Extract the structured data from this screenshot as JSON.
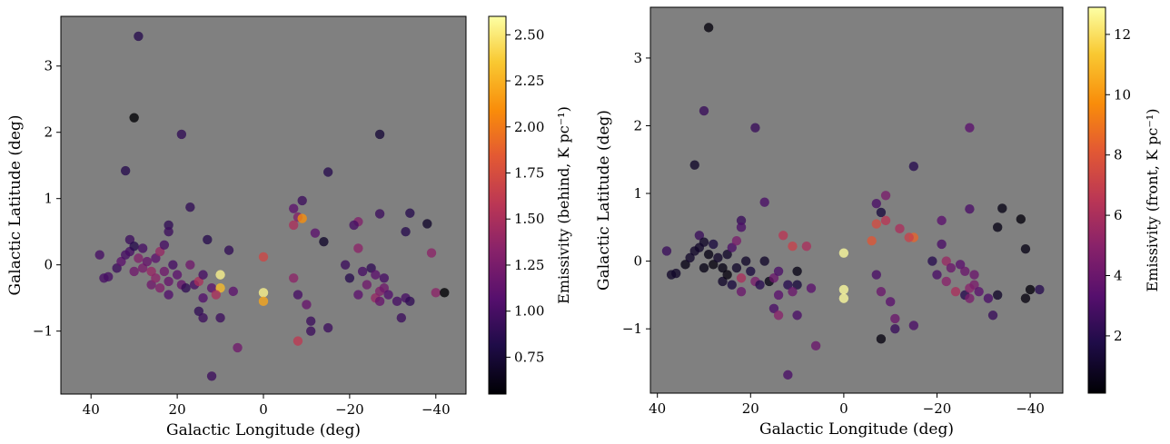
{
  "chart_data": [
    {
      "type": "scatter",
      "xlabel": "Galactic Longitude (deg)",
      "ylabel": "Galactic Latitude (deg)",
      "xlim": [
        47,
        -47
      ],
      "ylim": [
        -1.95,
        3.75
      ],
      "xticks": [
        40,
        20,
        0,
        -20,
        -40
      ],
      "xtick_labels": [
        "40",
        "20",
        "0",
        "−20",
        "−40"
      ],
      "yticks": [
        3,
        2,
        1,
        0,
        -1
      ],
      "ytick_labels": [
        "3",
        "2",
        "1",
        "0",
        "−1"
      ],
      "background": "#808080",
      "colormap": "inferno",
      "colorbar": {
        "label": "Emissivity (behind, K pc⁻¹)",
        "range": [
          0.55,
          2.6
        ],
        "ticks": [
          0.75,
          1.0,
          1.25,
          1.5,
          1.75,
          2.0,
          2.25,
          2.5
        ],
        "tick_labels": [
          "0.75",
          "1.00",
          "1.25",
          "1.50",
          "1.75",
          "2.00",
          "2.25",
          "2.50"
        ]
      },
      "points": [
        {
          "x": 29,
          "y": 3.45,
          "c": 0.85
        },
        {
          "x": 30,
          "y": 2.22,
          "c": 0.55
        },
        {
          "x": 19,
          "y": 1.97,
          "c": 0.9
        },
        {
          "x": -27,
          "y": 1.97,
          "c": 0.75
        },
        {
          "x": 32,
          "y": 1.42,
          "c": 0.85
        },
        {
          "x": -15,
          "y": 1.4,
          "c": 0.85
        },
        {
          "x": 17,
          "y": 0.87,
          "c": 0.9
        },
        {
          "x": -9,
          "y": 0.97,
          "c": 0.95
        },
        {
          "x": -7,
          "y": 0.85,
          "c": 1.1
        },
        {
          "x": -8,
          "y": 0.72,
          "c": 1.3
        },
        {
          "x": -9,
          "y": 0.7,
          "c": 2.1
        },
        {
          "x": -7,
          "y": 0.6,
          "c": 1.5
        },
        {
          "x": -12,
          "y": 0.48,
          "c": 1.1
        },
        {
          "x": -22,
          "y": 0.65,
          "c": 1.3
        },
        {
          "x": -21,
          "y": 0.6,
          "c": 1.0
        },
        {
          "x": -27,
          "y": 0.77,
          "c": 0.95
        },
        {
          "x": -34,
          "y": 0.78,
          "c": 0.85
        },
        {
          "x": -38,
          "y": 0.62,
          "c": 0.7
        },
        {
          "x": -33,
          "y": 0.5,
          "c": 0.85
        },
        {
          "x": 38,
          "y": 0.15,
          "c": 1.0
        },
        {
          "x": 37,
          "y": -0.2,
          "c": 1.0
        },
        {
          "x": 36,
          "y": -0.18,
          "c": 1.0
        },
        {
          "x": 34,
          "y": -0.05,
          "c": 0.95
        },
        {
          "x": 33,
          "y": 0.05,
          "c": 1.1
        },
        {
          "x": 32,
          "y": 0.15,
          "c": 1.0
        },
        {
          "x": 31,
          "y": 0.2,
          "c": 1.0
        },
        {
          "x": 31,
          "y": 0.38,
          "c": 0.95
        },
        {
          "x": 30,
          "y": -0.1,
          "c": 1.2
        },
        {
          "x": 30,
          "y": 0.28,
          "c": 0.85
        },
        {
          "x": 29,
          "y": 0.1,
          "c": 1.3
        },
        {
          "x": 28,
          "y": 0.25,
          "c": 1.0
        },
        {
          "x": 28,
          "y": -0.05,
          "c": 1.25
        },
        {
          "x": 27,
          "y": 0.05,
          "c": 1.15
        },
        {
          "x": 26,
          "y": -0.1,
          "c": 1.4
        },
        {
          "x": 26,
          "y": -0.3,
          "c": 1.2
        },
        {
          "x": 25,
          "y": -0.2,
          "c": 1.35
        },
        {
          "x": 25,
          "y": 0.1,
          "c": 1.1
        },
        {
          "x": 24,
          "y": 0.2,
          "c": 1.4
        },
        {
          "x": 24,
          "y": -0.35,
          "c": 1.3
        },
        {
          "x": 23,
          "y": 0.3,
          "c": 1.0
        },
        {
          "x": 23,
          "y": -0.1,
          "c": 1.2
        },
        {
          "x": 22,
          "y": 0.6,
          "c": 0.9
        },
        {
          "x": 22,
          "y": 0.5,
          "c": 0.95
        },
        {
          "x": 22,
          "y": -0.25,
          "c": 1.15
        },
        {
          "x": 22,
          "y": -0.45,
          "c": 1.05
        },
        {
          "x": 21,
          "y": 0.0,
          "c": 1.0
        },
        {
          "x": 20,
          "y": -0.15,
          "c": 1.1
        },
        {
          "x": 19,
          "y": -0.3,
          "c": 1.15
        },
        {
          "x": 18,
          "y": -0.35,
          "c": 0.9
        },
        {
          "x": 17,
          "y": 0.0,
          "c": 1.2
        },
        {
          "x": 16,
          "y": -0.3,
          "c": 1.0
        },
        {
          "x": 15,
          "y": -0.25,
          "c": 1.5
        },
        {
          "x": 14,
          "y": -0.15,
          "c": 1.0
        },
        {
          "x": 13,
          "y": 0.38,
          "c": 0.85
        },
        {
          "x": 14,
          "y": -0.5,
          "c": 1.05
        },
        {
          "x": 15,
          "y": -0.7,
          "c": 0.9
        },
        {
          "x": 14,
          "y": -0.8,
          "c": 0.95
        },
        {
          "x": 12,
          "y": -0.35,
          "c": 1.1
        },
        {
          "x": 10,
          "y": -0.15,
          "c": 2.55
        },
        {
          "x": 10,
          "y": -0.35,
          "c": 2.3
        },
        {
          "x": 11,
          "y": -0.45,
          "c": 1.5
        },
        {
          "x": 10,
          "y": -0.8,
          "c": 0.95
        },
        {
          "x": 8,
          "y": 0.22,
          "c": 0.9
        },
        {
          "x": 7,
          "y": -0.4,
          "c": 1.1
        },
        {
          "x": 6,
          "y": -1.25,
          "c": 1.2
        },
        {
          "x": 12,
          "y": -1.68,
          "c": 0.95
        },
        {
          "x": 0,
          "y": 0.12,
          "c": 1.7
        },
        {
          "x": 0,
          "y": -0.42,
          "c": 2.55
        },
        {
          "x": 0,
          "y": -0.55,
          "c": 2.2
        },
        {
          "x": -7,
          "y": -0.2,
          "c": 1.35
        },
        {
          "x": -8,
          "y": -0.45,
          "c": 1.0
        },
        {
          "x": -10,
          "y": -0.6,
          "c": 1.15
        },
        {
          "x": -11,
          "y": -0.85,
          "c": 0.95
        },
        {
          "x": -11,
          "y": -1.0,
          "c": 0.95
        },
        {
          "x": -8,
          "y": -1.15,
          "c": 1.6
        },
        {
          "x": -15,
          "y": -0.95,
          "c": 0.95
        },
        {
          "x": -14,
          "y": 0.35,
          "c": 0.7
        },
        {
          "x": -19,
          "y": 0.0,
          "c": 0.95
        },
        {
          "x": -20,
          "y": -0.2,
          "c": 0.85
        },
        {
          "x": -22,
          "y": 0.25,
          "c": 1.35
        },
        {
          "x": -23,
          "y": -0.1,
          "c": 1.0
        },
        {
          "x": -22,
          "y": -0.45,
          "c": 1.1
        },
        {
          "x": -24,
          "y": -0.3,
          "c": 1.2
        },
        {
          "x": -25,
          "y": -0.05,
          "c": 0.9
        },
        {
          "x": -26,
          "y": -0.15,
          "c": 1.1
        },
        {
          "x": -26,
          "y": -0.5,
          "c": 1.4
        },
        {
          "x": -27,
          "y": -0.4,
          "c": 1.3
        },
        {
          "x": -27,
          "y": -0.55,
          "c": 1.15
        },
        {
          "x": -28,
          "y": -0.2,
          "c": 1.0
        },
        {
          "x": -28,
          "y": -0.35,
          "c": 1.2
        },
        {
          "x": -29,
          "y": -0.45,
          "c": 1.05
        },
        {
          "x": -31,
          "y": -0.55,
          "c": 1.0
        },
        {
          "x": -32,
          "y": -0.8,
          "c": 0.95
        },
        {
          "x": -33,
          "y": -0.5,
          "c": 1.0
        },
        {
          "x": -34,
          "y": -0.55,
          "c": 0.9
        },
        {
          "x": -39,
          "y": 0.18,
          "c": 1.35
        },
        {
          "x": -40,
          "y": -0.42,
          "c": 1.35
        },
        {
          "x": -42,
          "y": -0.42,
          "c": 0.55
        }
      ]
    },
    {
      "type": "scatter",
      "xlabel": "Galactic Longitude (deg)",
      "ylabel": "Galactic Latitude (deg)",
      "xlim": [
        41.5,
        -47
      ],
      "ylim": [
        -1.95,
        3.75
      ],
      "xticks": [
        40,
        20,
        0,
        -20,
        -40
      ],
      "xtick_labels": [
        "40",
        "20",
        "0",
        "−20",
        "−40"
      ],
      "yticks": [
        3,
        2,
        1,
        0,
        -1
      ],
      "ytick_labels": [
        "3",
        "2",
        "1",
        "0",
        "−1"
      ],
      "background": "#808080",
      "colormap": "inferno",
      "colorbar": {
        "label": "Emissivity (front, K pc⁻¹)",
        "range": [
          0.1,
          12.9
        ],
        "ticks": [
          2,
          4,
          6,
          8,
          10,
          12
        ],
        "tick_labels": [
          "2",
          "4",
          "6",
          "8",
          "10",
          "12"
        ]
      },
      "points": [
        {
          "x": 29,
          "y": 3.45,
          "c": 0.3
        },
        {
          "x": 30,
          "y": 2.22,
          "c": 2.5
        },
        {
          "x": 19,
          "y": 1.97,
          "c": 2.5
        },
        {
          "x": -27,
          "y": 1.97,
          "c": 3.5
        },
        {
          "x": 32,
          "y": 1.42,
          "c": 1.0
        },
        {
          "x": -15,
          "y": 1.4,
          "c": 2.0
        },
        {
          "x": 17,
          "y": 0.87,
          "c": 3.0
        },
        {
          "x": -9,
          "y": 0.97,
          "c": 4.5
        },
        {
          "x": -7,
          "y": 0.85,
          "c": 3.0
        },
        {
          "x": -8,
          "y": 0.72,
          "c": 1.5
        },
        {
          "x": -9,
          "y": 0.6,
          "c": 6.5
        },
        {
          "x": -7,
          "y": 0.55,
          "c": 7.5
        },
        {
          "x": -6,
          "y": 0.3,
          "c": 8.0
        },
        {
          "x": -12,
          "y": 0.48,
          "c": 6.0
        },
        {
          "x": -15,
          "y": 0.35,
          "c": 8.5
        },
        {
          "x": 13,
          "y": 0.38,
          "c": 6.5
        },
        {
          "x": 8,
          "y": 0.22,
          "c": 6.0
        },
        {
          "x": 38,
          "y": 0.15,
          "c": 2.5
        },
        {
          "x": 37,
          "y": -0.2,
          "c": 1.0
        },
        {
          "x": 36,
          "y": -0.18,
          "c": 1.0
        },
        {
          "x": 34,
          "y": -0.05,
          "c": 0.5
        },
        {
          "x": 33,
          "y": 0.05,
          "c": 1.0
        },
        {
          "x": 32,
          "y": 0.15,
          "c": 1.0
        },
        {
          "x": 31,
          "y": 0.2,
          "c": 1.0
        },
        {
          "x": 31,
          "y": 0.38,
          "c": 2.5
        },
        {
          "x": 30,
          "y": -0.1,
          "c": 0.5
        },
        {
          "x": 30,
          "y": 0.28,
          "c": 1.0
        },
        {
          "x": 29,
          "y": 0.1,
          "c": 0.5
        },
        {
          "x": 28,
          "y": 0.25,
          "c": 1.5
        },
        {
          "x": 28,
          "y": -0.05,
          "c": 0.4
        },
        {
          "x": 27,
          "y": 0.05,
          "c": 1.0
        },
        {
          "x": 26,
          "y": -0.1,
          "c": 0.5
        },
        {
          "x": 26,
          "y": -0.3,
          "c": 1.0
        },
        {
          "x": 25,
          "y": -0.2,
          "c": 0.4
        },
        {
          "x": 25,
          "y": 0.1,
          "c": 1.0
        },
        {
          "x": 24,
          "y": 0.2,
          "c": 3.0
        },
        {
          "x": 24,
          "y": -0.35,
          "c": 1.5
        },
        {
          "x": 23,
          "y": 0.3,
          "c": 4.5
        },
        {
          "x": 23,
          "y": -0.1,
          "c": 1.0
        },
        {
          "x": 22,
          "y": 0.6,
          "c": 2.5
        },
        {
          "x": 22,
          "y": 0.5,
          "c": 3.0
        },
        {
          "x": 22,
          "y": -0.25,
          "c": 6.0
        },
        {
          "x": 22,
          "y": -0.45,
          "c": 4.0
        },
        {
          "x": 21,
          "y": 0.0,
          "c": 1.0
        },
        {
          "x": 20,
          "y": -0.15,
          "c": 1.5
        },
        {
          "x": 19,
          "y": -0.3,
          "c": 4.5
        },
        {
          "x": 18,
          "y": -0.35,
          "c": 2.0
        },
        {
          "x": 17,
          "y": 0.0,
          "c": 1.0
        },
        {
          "x": 16,
          "y": -0.3,
          "c": 0.5
        },
        {
          "x": 15,
          "y": -0.25,
          "c": 4.0
        },
        {
          "x": 14,
          "y": -0.15,
          "c": 3.0
        },
        {
          "x": 14,
          "y": -0.5,
          "c": 3.5
        },
        {
          "x": 15,
          "y": -0.7,
          "c": 3.0
        },
        {
          "x": 14,
          "y": -0.8,
          "c": 5.0
        },
        {
          "x": 12,
          "y": -0.35,
          "c": 2.0
        },
        {
          "x": 11,
          "y": 0.22,
          "c": 7.0
        },
        {
          "x": 10,
          "y": -0.15,
          "c": 0.5
        },
        {
          "x": 10,
          "y": -0.35,
          "c": 1.5
        },
        {
          "x": 11,
          "y": -0.45,
          "c": 4.0
        },
        {
          "x": 10,
          "y": -0.8,
          "c": 3.0
        },
        {
          "x": 7,
          "y": -0.4,
          "c": 3.5
        },
        {
          "x": 6,
          "y": -1.25,
          "c": 4.0
        },
        {
          "x": 12,
          "y": -1.68,
          "c": 3.0
        },
        {
          "x": 0,
          "y": 0.12,
          "c": 12.8
        },
        {
          "x": 0,
          "y": -0.42,
          "c": 12.8
        },
        {
          "x": 0,
          "y": -0.55,
          "c": 12.8
        },
        {
          "x": -7,
          "y": -0.2,
          "c": 3.0
        },
        {
          "x": -8,
          "y": -0.45,
          "c": 4.0
        },
        {
          "x": -10,
          "y": -0.6,
          "c": 3.5
        },
        {
          "x": -11,
          "y": -0.85,
          "c": 4.0
        },
        {
          "x": -11,
          "y": -1.0,
          "c": 2.5
        },
        {
          "x": -8,
          "y": -1.15,
          "c": 0.4
        },
        {
          "x": -15,
          "y": -0.95,
          "c": 3.0
        },
        {
          "x": -14,
          "y": 0.35,
          "c": 7.0
        },
        {
          "x": -19,
          "y": 0.0,
          "c": 2.0
        },
        {
          "x": -20,
          "y": -0.2,
          "c": 3.0
        },
        {
          "x": -21,
          "y": 0.6,
          "c": 3.5
        },
        {
          "x": -21,
          "y": 0.25,
          "c": 3.0
        },
        {
          "x": -22,
          "y": 0.0,
          "c": 5.5
        },
        {
          "x": -23,
          "y": -0.1,
          "c": 4.0
        },
        {
          "x": -22,
          "y": -0.3,
          "c": 5.0
        },
        {
          "x": -24,
          "y": -0.45,
          "c": 6.0
        },
        {
          "x": -25,
          "y": -0.05,
          "c": 3.5
        },
        {
          "x": -26,
          "y": -0.15,
          "c": 4.0
        },
        {
          "x": -26,
          "y": -0.5,
          "c": 2.0
        },
        {
          "x": -27,
          "y": -0.4,
          "c": 5.0
        },
        {
          "x": -27,
          "y": -0.55,
          "c": 4.5
        },
        {
          "x": -28,
          "y": -0.2,
          "c": 4.0
        },
        {
          "x": -28,
          "y": -0.35,
          "c": 4.5
        },
        {
          "x": -29,
          "y": -0.45,
          "c": 3.5
        },
        {
          "x": -31,
          "y": -0.55,
          "c": 3.0
        },
        {
          "x": -32,
          "y": -0.8,
          "c": 2.5
        },
        {
          "x": -33,
          "y": -0.5,
          "c": 1.0
        },
        {
          "x": -34,
          "y": 0.78,
          "c": 0.5
        },
        {
          "x": -33,
          "y": 0.5,
          "c": 0.5
        },
        {
          "x": -27,
          "y": 0.77,
          "c": 3.0
        },
        {
          "x": -38,
          "y": 0.62,
          "c": 0.3
        },
        {
          "x": -39,
          "y": 0.18,
          "c": 0.5
        },
        {
          "x": -40,
          "y": -0.42,
          "c": 0.3
        },
        {
          "x": -39,
          "y": -0.55,
          "c": 0.4
        },
        {
          "x": -42,
          "y": -0.42,
          "c": 2.0
        }
      ]
    }
  ]
}
